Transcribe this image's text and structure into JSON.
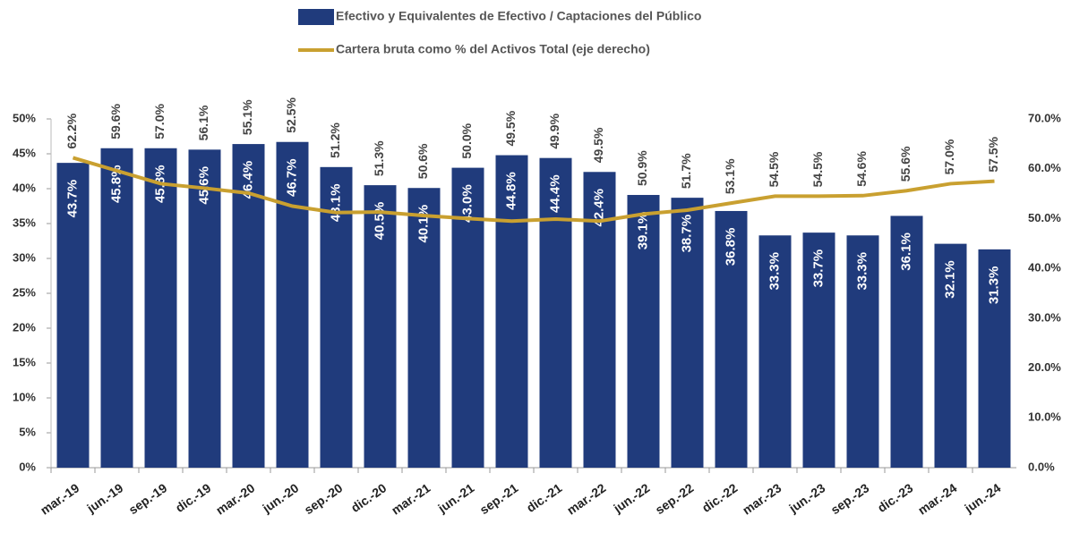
{
  "chart_data": {
    "type": "bar_line",
    "categories": [
      "mar.-19",
      "jun.-19",
      "sep.-19",
      "dic.-19",
      "mar.-20",
      "jun.-20",
      "sep.-20",
      "dic.-20",
      "mar.-21",
      "jun.-21",
      "sep.-21",
      "dic.-21",
      "mar.-22",
      "jun.-22",
      "sep.-22",
      "dic.-22",
      "mar.-23",
      "jun.-23",
      "sep.-23",
      "dic.-23",
      "mar.-24",
      "jun.-24"
    ],
    "series": [
      {
        "name": "Efectivo y Equivalentes de Efectivo  / Captaciones del Público",
        "color": "#203b7c",
        "type": "bar",
        "values": [
          43.7,
          45.8,
          45.8,
          45.6,
          46.4,
          46.7,
          43.1,
          40.5,
          40.1,
          43.0,
          44.8,
          44.4,
          42.4,
          39.1,
          38.7,
          36.8,
          33.3,
          33.7,
          33.3,
          36.1,
          32.1,
          31.3
        ],
        "value_labels": [
          "43.7%",
          "45.8%",
          "45.8%",
          "45.6%",
          "46.4%",
          "46.7%",
          "43.1%",
          "40.5%",
          "40.1%",
          "43.0%",
          "44.8%",
          "44.4%",
          "42.4%",
          "39.1%",
          "38.7%",
          "36.8%",
          "33.3%",
          "33.7%",
          "33.3%",
          "36.1%",
          "32.1%",
          "31.3%"
        ]
      },
      {
        "name": "Cartera bruta como % del Activos Total (eje derecho)",
        "color": "#c9a030",
        "type": "line",
        "axis": "y2",
        "values": [
          62.2,
          59.6,
          57.0,
          56.1,
          55.1,
          52.5,
          51.2,
          51.3,
          50.6,
          50.0,
          49.5,
          49.9,
          49.5,
          50.9,
          51.7,
          53.1,
          54.5,
          54.5,
          54.6,
          55.6,
          57.0,
          57.5
        ],
        "value_labels": [
          "62.2%",
          "59.6%",
          "57.0%",
          "56.1%",
          "55.1%",
          "52.5%",
          "51.2%",
          "51.3%",
          "50.6%",
          "50.0%",
          "49.5%",
          "49.9%",
          "49.5%",
          "50.9%",
          "51.7%",
          "53.1%",
          "54.5%",
          "54.5%",
          "54.6%",
          "55.6%",
          "57.0%",
          "57.5%"
        ]
      }
    ],
    "ylim": [
      0,
      50
    ],
    "yticks": [
      {
        "value": 0,
        "label": "0%"
      },
      {
        "value": 5,
        "label": "5%"
      },
      {
        "value": 10,
        "label": "10%"
      },
      {
        "value": 15,
        "label": "15%"
      },
      {
        "value": 20,
        "label": "20%"
      },
      {
        "value": 25,
        "label": "25%"
      },
      {
        "value": 30,
        "label": "30%"
      },
      {
        "value": 35,
        "label": "35%"
      },
      {
        "value": 40,
        "label": "40%"
      },
      {
        "value": 45,
        "label": "45%"
      },
      {
        "value": 50,
        "label": "50%"
      }
    ],
    "y2lim": [
      0,
      70
    ],
    "y2ticks": [
      {
        "value": 0,
        "label": "0.0%"
      },
      {
        "value": 10,
        "label": "10.0%"
      },
      {
        "value": 20,
        "label": "20.0%"
      },
      {
        "value": 30,
        "label": "30.0%"
      },
      {
        "value": 40,
        "label": "40.0%"
      },
      {
        "value": 50,
        "label": "50.0%"
      },
      {
        "value": 60,
        "label": "60.0%"
      },
      {
        "value": 70,
        "label": "70.0%"
      }
    ],
    "grid": false
  }
}
